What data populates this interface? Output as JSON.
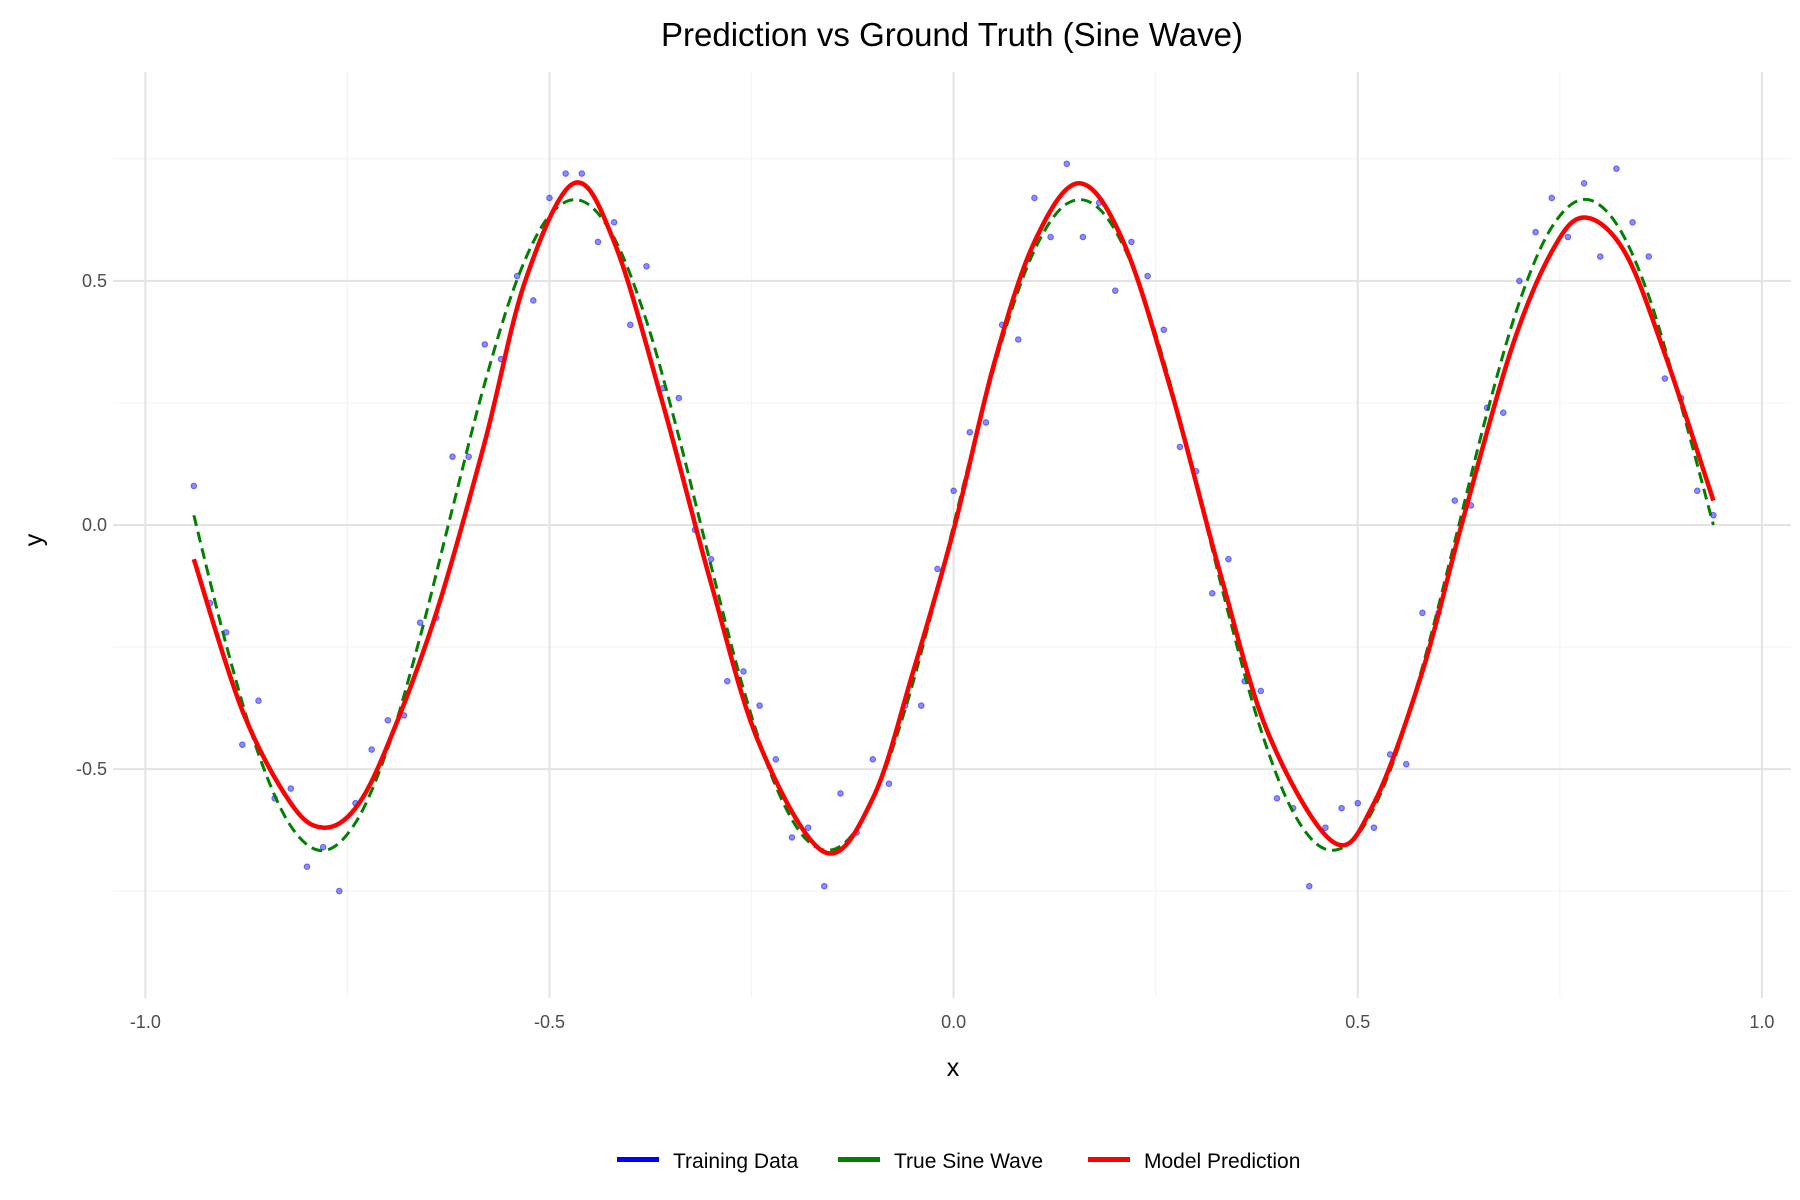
{
  "chart_data": {
    "type": "line",
    "title": "Prediction vs Ground Truth (Sine Wave)",
    "xlabel": "x",
    "ylabel": "y",
    "xlim": [
      -1.04,
      1.036
    ],
    "ylim": [
      -0.969,
      0.928
    ],
    "grid": true,
    "x_ticks": [
      -1.0,
      -0.5,
      0.0,
      0.5,
      1.0
    ],
    "x_tick_labels": [
      "-1.0",
      "-0.5",
      "0.0",
      "0.5",
      "1.0"
    ],
    "x_minor_ticks": [
      -0.75,
      -0.25,
      0.25,
      0.75
    ],
    "y_ticks": [
      -0.5,
      0.0,
      0.5
    ],
    "y_tick_labels": [
      "-0.5",
      "0.0",
      "0.5"
    ],
    "y_minor_ticks": [
      -0.75,
      -0.25,
      0.25,
      0.75
    ],
    "legend": {
      "position": "bottom",
      "entries": [
        {
          "label": "Training Data",
          "color": "#0000ff"
        },
        {
          "label": "True Sine Wave",
          "color": "#008000"
        },
        {
          "label": "Model Prediction",
          "color": "#ff0000"
        }
      ]
    },
    "series": [
      {
        "name": "Training Data",
        "kind": "scatter",
        "color": "#0000ff",
        "x": [
          -0.94,
          -0.92,
          -0.9,
          -0.88,
          -0.86,
          -0.84,
          -0.82,
          -0.8,
          -0.78,
          -0.76,
          -0.74,
          -0.72,
          -0.7,
          -0.68,
          -0.66,
          -0.64,
          -0.62,
          -0.6,
          -0.58,
          -0.56,
          -0.54,
          -0.52,
          -0.5,
          -0.48,
          -0.46,
          -0.44,
          -0.42,
          -0.4,
          -0.38,
          -0.36,
          -0.34,
          -0.32,
          -0.3,
          -0.28,
          -0.26,
          -0.24,
          -0.22,
          -0.2,
          -0.18,
          -0.16,
          -0.14,
          -0.12,
          -0.1,
          -0.08,
          -0.06,
          -0.04,
          -0.02,
          0.0,
          0.02,
          0.04,
          0.06,
          0.08,
          0.1,
          0.12,
          0.14,
          0.16,
          0.18,
          0.2,
          0.22,
          0.24,
          0.26,
          0.28,
          0.3,
          0.32,
          0.34,
          0.36,
          0.38,
          0.4,
          0.42,
          0.44,
          0.46,
          0.48,
          0.5,
          0.52,
          0.54,
          0.56,
          0.58,
          0.6,
          0.62,
          0.64,
          0.66,
          0.68,
          0.7,
          0.72,
          0.74,
          0.76,
          0.78,
          0.8,
          0.82,
          0.84,
          0.86,
          0.88,
          0.9,
          0.92,
          0.94
        ],
        "y": [
          0.08,
          -0.16,
          -0.22,
          -0.45,
          -0.36,
          -0.56,
          -0.54,
          -0.7,
          -0.66,
          -0.75,
          -0.57,
          -0.46,
          -0.4,
          -0.39,
          -0.2,
          -0.19,
          0.14,
          0.14,
          0.37,
          0.34,
          0.51,
          0.46,
          0.67,
          0.72,
          0.72,
          0.58,
          0.62,
          0.41,
          0.53,
          0.28,
          0.26,
          -0.01,
          -0.07,
          -0.32,
          -0.3,
          -0.37,
          -0.48,
          -0.64,
          -0.62,
          -0.74,
          -0.55,
          -0.63,
          -0.48,
          -0.53,
          -0.37,
          -0.37,
          -0.09,
          0.07,
          0.19,
          0.21,
          0.41,
          0.38,
          0.67,
          0.59,
          0.74,
          0.59,
          0.66,
          0.48,
          0.58,
          0.51,
          0.4,
          0.16,
          0.11,
          -0.14,
          -0.07,
          -0.32,
          -0.34,
          -0.56,
          -0.58,
          -0.74,
          -0.62,
          -0.58,
          -0.57,
          -0.62,
          -0.47,
          -0.49,
          -0.18,
          -0.18,
          0.05,
          0.04,
          0.24,
          0.23,
          0.5,
          0.6,
          0.67,
          0.59,
          0.7,
          0.55,
          0.73,
          0.62,
          0.55,
          0.3,
          0.26,
          0.07,
          0.02
        ]
      },
      {
        "name": "True Sine Wave",
        "kind": "dashed-line",
        "color": "#008000",
        "x": [
          -0.94,
          -0.9,
          -0.86,
          -0.82,
          -0.78,
          -0.74,
          -0.7,
          -0.66,
          -0.62,
          -0.58,
          -0.54,
          -0.5,
          -0.46,
          -0.42,
          -0.38,
          -0.34,
          -0.3,
          -0.26,
          -0.22,
          -0.18,
          -0.14,
          -0.1,
          -0.06,
          -0.02,
          0.02,
          0.06,
          0.1,
          0.14,
          0.18,
          0.22,
          0.26,
          0.3,
          0.34,
          0.38,
          0.42,
          0.46,
          0.5,
          0.54,
          0.58,
          0.62,
          0.66,
          0.7,
          0.74,
          0.78,
          0.82,
          0.86,
          0.9,
          0.94
        ],
        "y": [
          0.02,
          -0.245,
          -0.469,
          -0.617,
          -0.667,
          -0.61,
          -0.457,
          -0.229,
          0.034,
          0.291,
          0.503,
          0.634,
          0.664,
          0.588,
          0.418,
          0.181,
          -0.084,
          -0.336,
          -0.535,
          -0.648,
          -0.658,
          -0.563,
          -0.378,
          -0.133,
          0.133,
          0.379,
          0.563,
          0.658,
          0.648,
          0.535,
          0.336,
          0.084,
          -0.181,
          -0.419,
          -0.588,
          -0.664,
          -0.634,
          -0.503,
          -0.291,
          -0.034,
          0.23,
          0.457,
          0.61,
          0.667,
          0.617,
          0.469,
          0.245,
          0.0
        ]
      },
      {
        "name": "Model Prediction",
        "kind": "line",
        "color": "#ff0000",
        "x": [
          -0.94,
          -0.88,
          -0.82,
          -0.78,
          -0.74,
          -0.7,
          -0.64,
          -0.58,
          -0.53,
          -0.47,
          -0.42,
          -0.36,
          -0.3,
          -0.24,
          -0.16,
          -0.1,
          -0.05,
          0.0,
          0.05,
          0.1,
          0.155,
          0.21,
          0.27,
          0.33,
          0.39,
          0.47,
          0.52,
          0.58,
          0.63,
          0.69,
          0.74,
          0.78,
          0.83,
          0.88,
          0.94
        ],
        "y": [
          -0.07,
          -0.38,
          -0.57,
          -0.62,
          -0.58,
          -0.45,
          -0.18,
          0.17,
          0.5,
          0.7,
          0.58,
          0.25,
          -0.12,
          -0.45,
          -0.67,
          -0.56,
          -0.3,
          -0.01,
          0.33,
          0.58,
          0.7,
          0.58,
          0.27,
          -0.1,
          -0.43,
          -0.65,
          -0.57,
          -0.3,
          0.01,
          0.36,
          0.56,
          0.63,
          0.56,
          0.35,
          0.05
        ]
      }
    ]
  }
}
